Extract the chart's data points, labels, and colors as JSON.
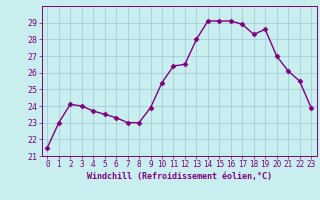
{
  "x": [
    0,
    1,
    2,
    3,
    4,
    5,
    6,
    7,
    8,
    9,
    10,
    11,
    12,
    13,
    14,
    15,
    16,
    17,
    18,
    19,
    20,
    21,
    22,
    23
  ],
  "y": [
    21.5,
    23.0,
    24.1,
    24.0,
    23.7,
    23.5,
    23.3,
    23.0,
    23.0,
    23.9,
    25.4,
    26.4,
    26.5,
    28.0,
    29.1,
    29.1,
    29.1,
    28.9,
    28.3,
    28.6,
    27.0,
    26.1,
    25.5,
    23.9
  ],
  "line_color": "#800080",
  "marker": "D",
  "marker_size": 2.5,
  "linewidth": 1.0,
  "bg_color": "#c8eef0",
  "grid_color": "#a0c8d0",
  "xlabel": "Windchill (Refroidissement éolien,°C)",
  "xlabel_color": "#800080",
  "tick_color": "#800080",
  "ylim": [
    21,
    30
  ],
  "yticks": [
    21,
    22,
    23,
    24,
    25,
    26,
    27,
    28,
    29
  ],
  "xlim": [
    -0.5,
    23.5
  ],
  "xticks": [
    0,
    1,
    2,
    3,
    4,
    5,
    6,
    7,
    8,
    9,
    10,
    11,
    12,
    13,
    14,
    15,
    16,
    17,
    18,
    19,
    20,
    21,
    22,
    23
  ]
}
